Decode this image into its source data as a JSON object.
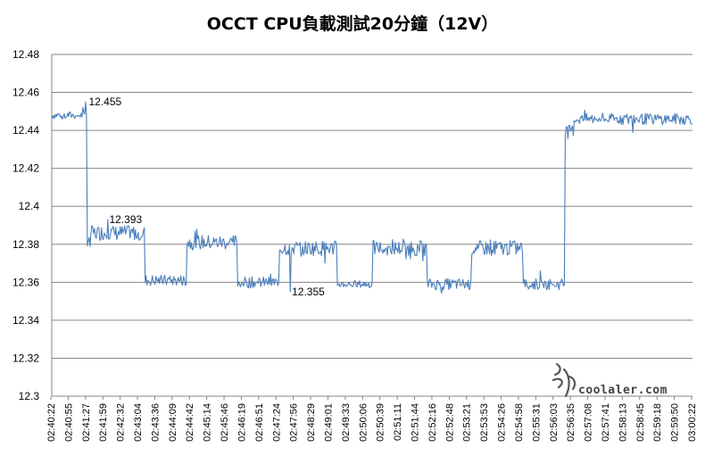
{
  "watermark_text": "coolaler.com",
  "chart_data": {
    "type": "line",
    "title": "OCCT CPU負載測試20分鐘（12V）",
    "xlabel": "",
    "ylabel": "",
    "ylim": [
      12.3,
      12.48
    ],
    "y_ticks": [
      "12.3",
      "12.32",
      "12.34",
      "12.36",
      "12.38",
      "12.4",
      "12.42",
      "12.44",
      "12.46",
      "12.48"
    ],
    "x_ticks": [
      "02:40:22",
      "02:40:55",
      "02:41:27",
      "02:41:59",
      "02:42:32",
      "02:43:04",
      "02:43:36",
      "02:44:09",
      "02:44:42",
      "02:45:14",
      "02:45:46",
      "02:46:19",
      "02:46:51",
      "02:47:24",
      "02:47:56",
      "02:48:29",
      "02:49:01",
      "02:49:33",
      "02:50:06",
      "02:50:39",
      "02:51:11",
      "02:51:44",
      "02:52:16",
      "02:52:48",
      "02:53:21",
      "02:53:53",
      "02:54:26",
      "02:54:58",
      "02:55:31",
      "02:56:03",
      "02:56:35",
      "02:57:08",
      "02:57:41",
      "02:58:13",
      "02:58:45",
      "02:59:18",
      "02:59:50",
      "03:00:22"
    ],
    "grid": true,
    "legend": "none",
    "line_color": "#4a7ebb",
    "segments": [
      {
        "to": 0.055,
        "level": 12.448,
        "noise": 0.002
      },
      {
        "to": 0.06,
        "level": 12.38,
        "noise": 0.004
      },
      {
        "to": 0.145,
        "level": 12.386,
        "noise": 0.004
      },
      {
        "to": 0.21,
        "level": 12.361,
        "noise": 0.003
      },
      {
        "to": 0.29,
        "level": 12.381,
        "noise": 0.004
      },
      {
        "to": 0.355,
        "level": 12.36,
        "noise": 0.003
      },
      {
        "to": 0.445,
        "level": 12.378,
        "noise": 0.004
      },
      {
        "to": 0.5,
        "level": 12.359,
        "noise": 0.002
      },
      {
        "to": 0.585,
        "level": 12.378,
        "noise": 0.004
      },
      {
        "to": 0.655,
        "level": 12.359,
        "noise": 0.003
      },
      {
        "to": 0.735,
        "level": 12.378,
        "noise": 0.004
      },
      {
        "to": 0.8,
        "level": 12.359,
        "noise": 0.003
      },
      {
        "to": 0.815,
        "level": 12.44,
        "noise": 0.003
      },
      {
        "to": 1.0,
        "level": 12.446,
        "noise": 0.003
      }
    ],
    "annotations": [
      {
        "text": "12.455",
        "x_frac": 0.055,
        "y": 12.455
      },
      {
        "text": "12.393",
        "x_frac": 0.087,
        "y": 12.393
      },
      {
        "text": "12.355",
        "x_frac": 0.372,
        "y": 12.355
      }
    ]
  }
}
